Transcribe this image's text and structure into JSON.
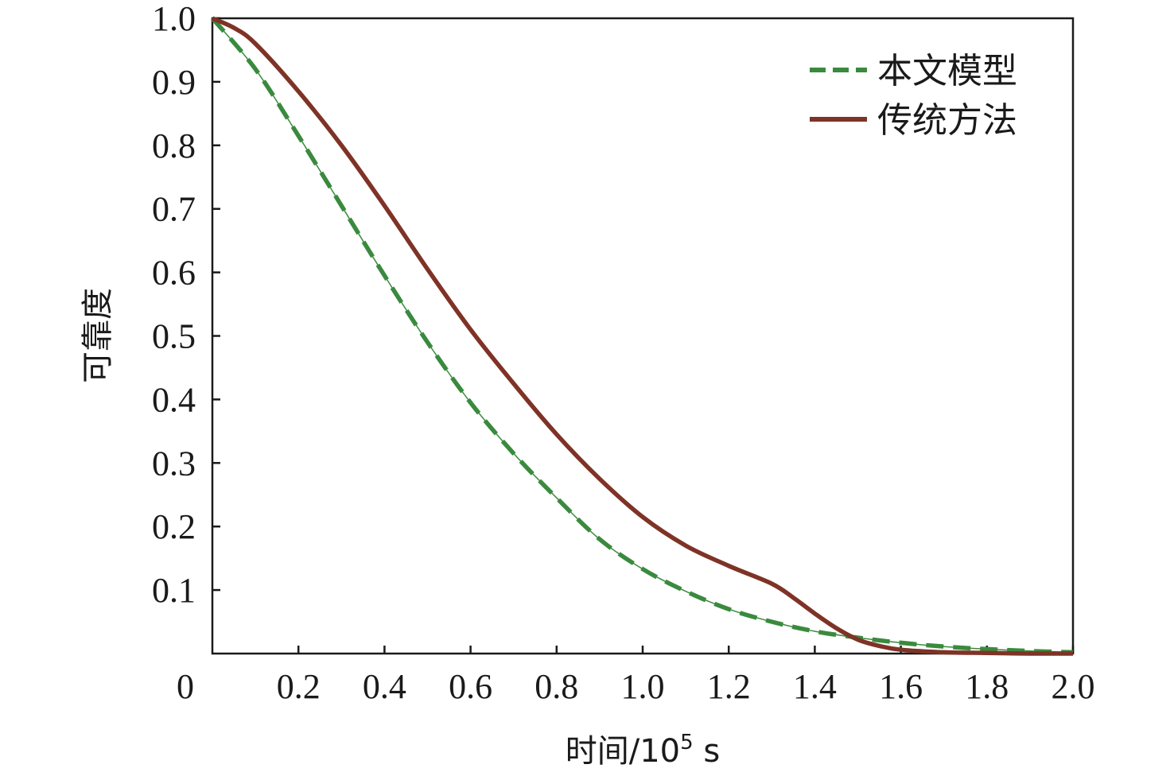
{
  "chart_data": {
    "type": "line",
    "xlabel_main": "时间/10",
    "xlabel_sup": "5",
    "xlabel_unit": " s",
    "ylabel": "可靠度",
    "xlim": [
      0,
      2.0
    ],
    "ylim": [
      0,
      1.0
    ],
    "x_ticks": [
      0.2,
      0.4,
      0.6,
      0.8,
      1.0,
      1.2,
      1.4,
      1.6,
      1.8,
      2.0
    ],
    "x_tick_labels": [
      "0.2",
      "0.4",
      "0.6",
      "0.8",
      "1.0",
      "1.2",
      "1.4",
      "1.6",
      "1.8",
      "2.0"
    ],
    "origin_label": "0",
    "y_ticks": [
      0.1,
      0.2,
      0.3,
      0.4,
      0.5,
      0.6,
      0.7,
      0.8,
      0.9,
      1.0
    ],
    "y_tick_labels": [
      "0.1",
      "0.2",
      "0.3",
      "0.4",
      "0.5",
      "0.6",
      "0.7",
      "0.8",
      "0.9",
      "1.0"
    ],
    "grid": false,
    "legend_position": "top-right",
    "series": [
      {
        "name": "本文模型",
        "color": "#3a8a3e",
        "style": "dashed",
        "x": [
          0,
          0.1,
          0.2,
          0.3,
          0.4,
          0.5,
          0.6,
          0.7,
          0.8,
          0.9,
          1.0,
          1.1,
          1.2,
          1.3,
          1.4,
          1.5,
          1.6,
          1.7,
          1.8,
          1.9,
          2.0
        ],
        "y": [
          1.0,
          0.92,
          0.815,
          0.705,
          0.595,
          0.49,
          0.395,
          0.315,
          0.245,
          0.18,
          0.133,
          0.098,
          0.07,
          0.05,
          0.035,
          0.025,
          0.017,
          0.011,
          0.007,
          0.004,
          0.002
        ]
      },
      {
        "name": "传统方法",
        "color": "#7e3326",
        "style": "solid",
        "x": [
          0,
          0.05,
          0.1,
          0.2,
          0.3,
          0.4,
          0.5,
          0.6,
          0.7,
          0.8,
          0.9,
          1.0,
          1.1,
          1.2,
          1.3,
          1.35,
          1.4,
          1.45,
          1.5,
          1.55,
          1.6,
          1.7,
          1.8,
          1.9,
          2.0
        ],
        "y": [
          1.0,
          0.985,
          0.96,
          0.885,
          0.8,
          0.705,
          0.605,
          0.51,
          0.425,
          0.345,
          0.275,
          0.215,
          0.17,
          0.138,
          0.11,
          0.088,
          0.063,
          0.04,
          0.022,
          0.012,
          0.006,
          0.002,
          0.001,
          0.0,
          0.0
        ]
      }
    ]
  }
}
